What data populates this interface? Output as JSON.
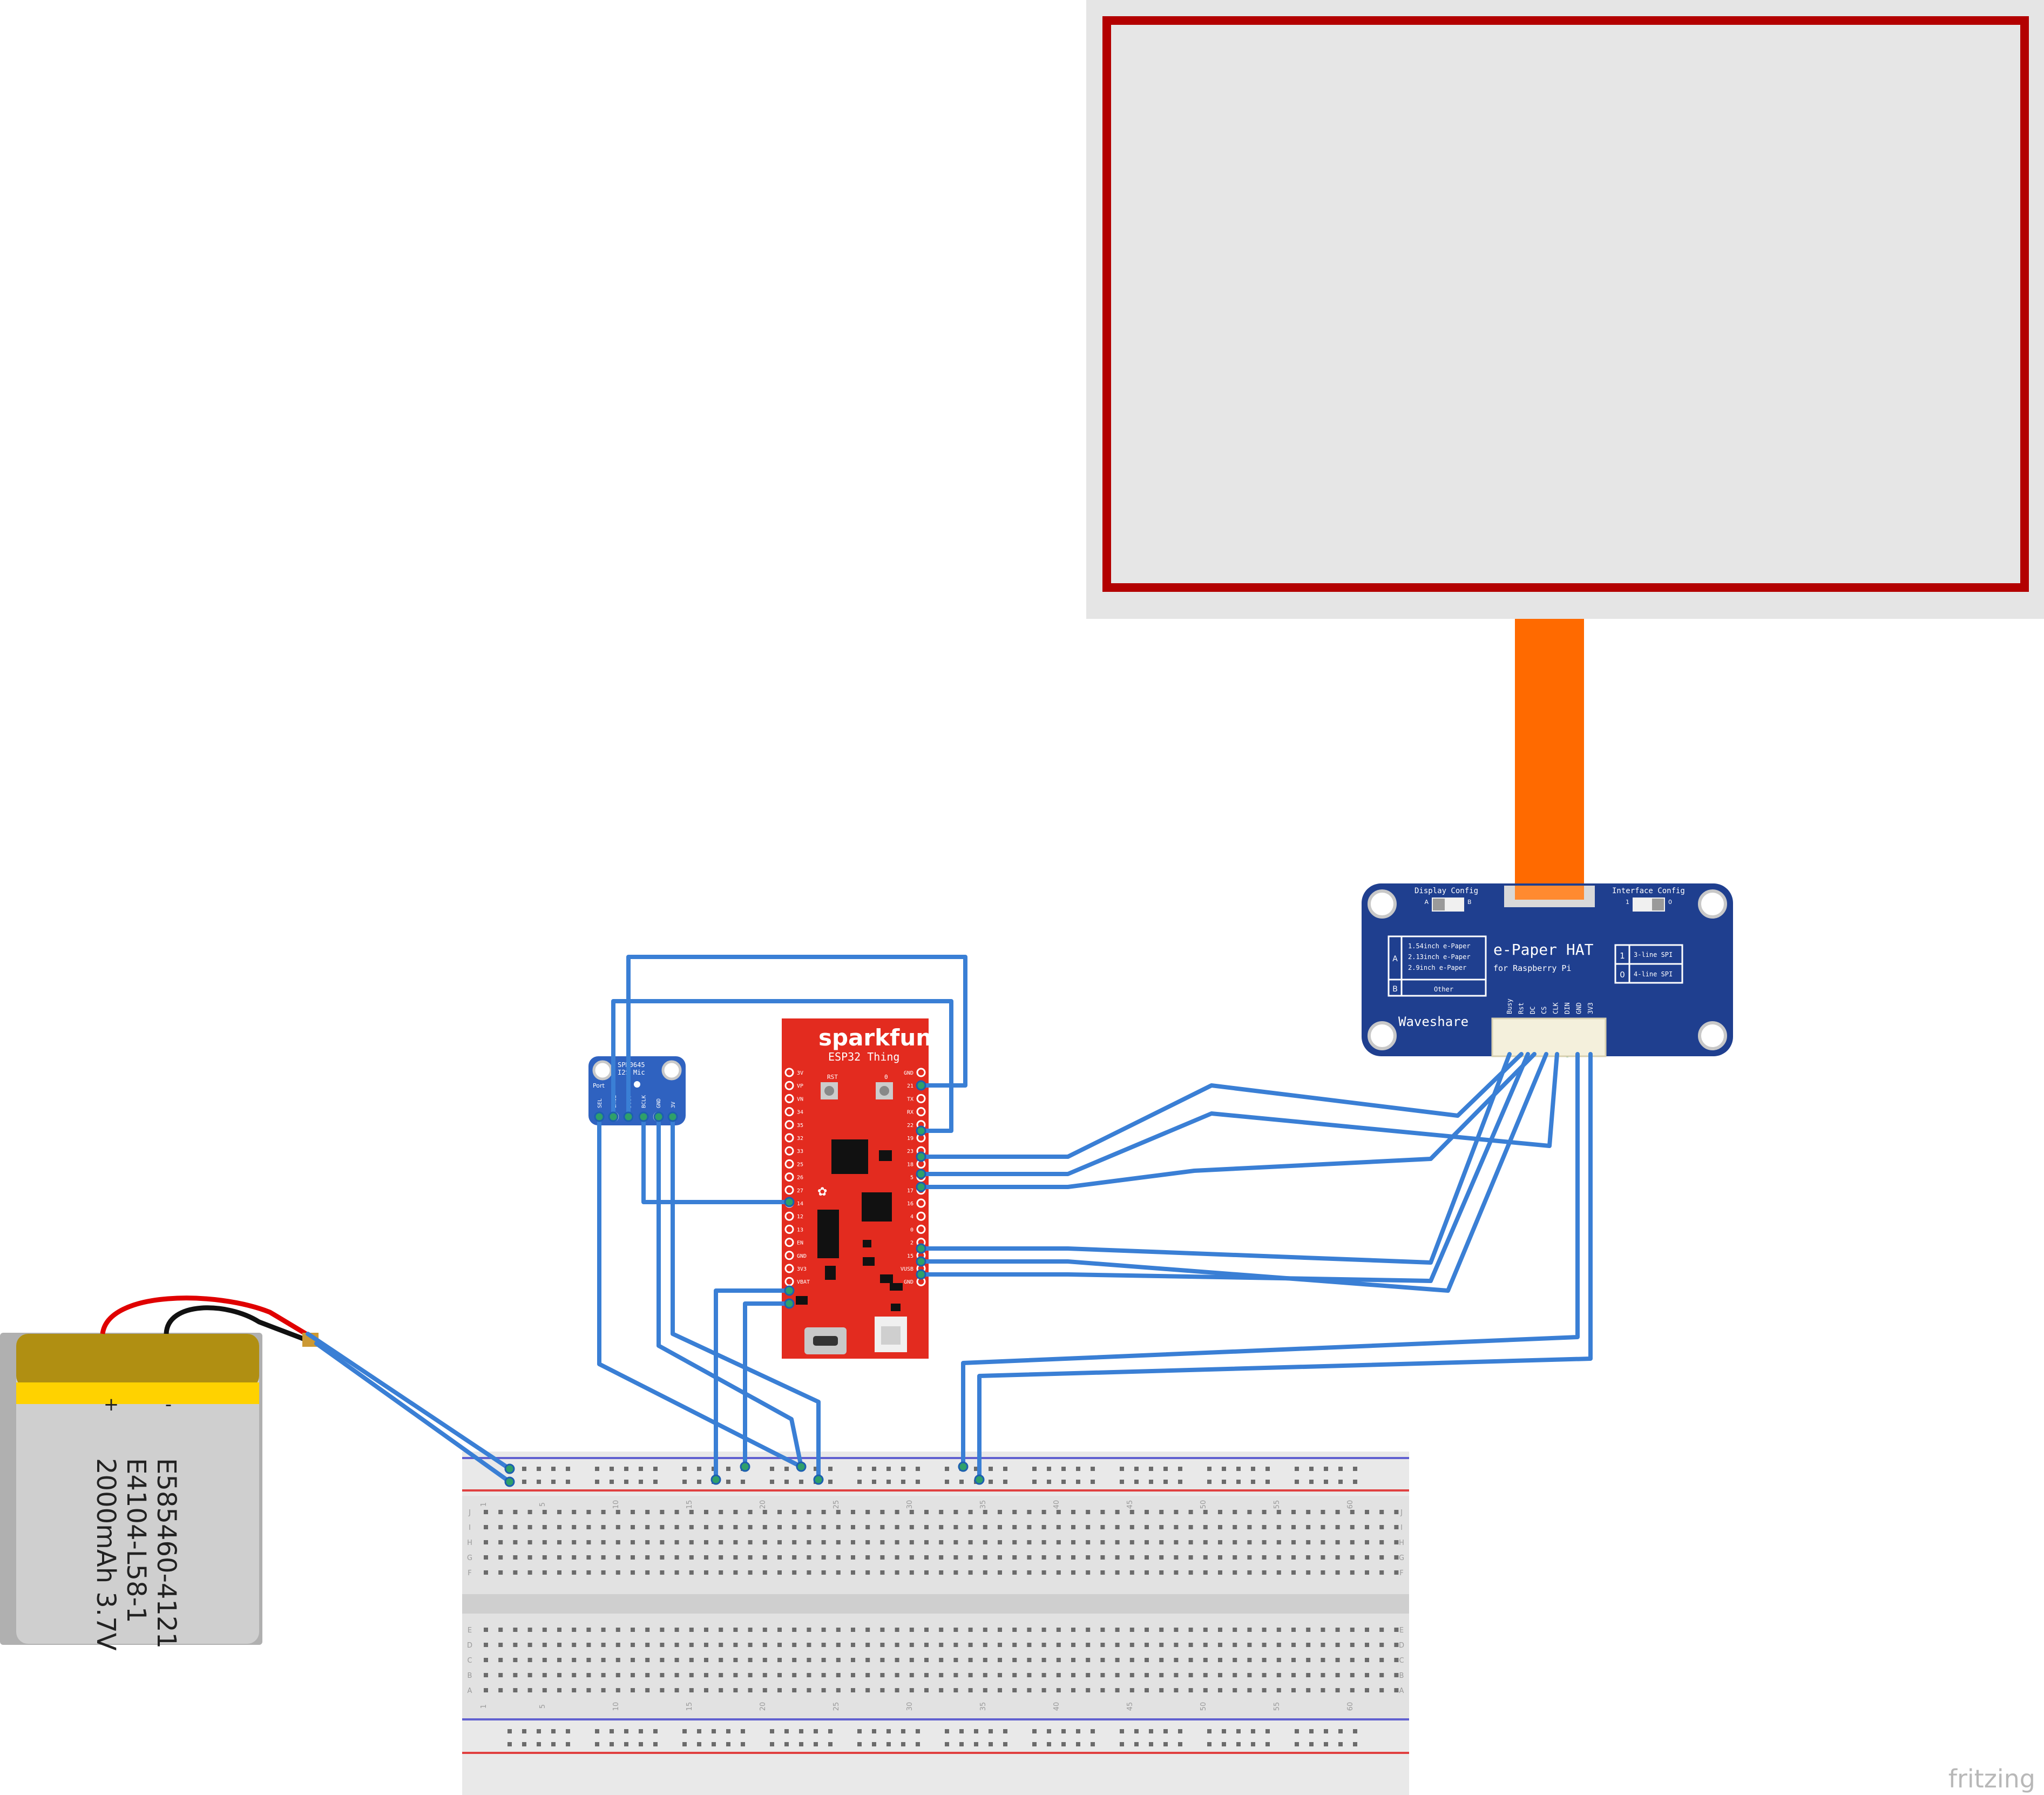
{
  "battery": {
    "plus": "+",
    "minus": "-",
    "label_line1": "E585460-4121",
    "label_line2": "E4104-L58-1",
    "label_line3": "2000mAh 3.7V"
  },
  "esp32": {
    "brand": "sparkfun",
    "model": "ESP32 Thing",
    "left_pins": [
      "3V",
      "VP",
      "VN",
      "34",
      "35",
      "32",
      "33",
      "25",
      "26",
      "27",
      "14",
      "12",
      "13",
      "EN",
      "GND",
      "3V3",
      "VBAT"
    ],
    "right_pins": [
      "GND",
      "21",
      "TX",
      "RX",
      "22",
      "19",
      "23",
      "18",
      "5",
      "17",
      "16",
      "4",
      "0",
      "2",
      "15",
      "VUSB",
      "GND"
    ],
    "btn_left": "RST",
    "btn_right": "0"
  },
  "mic": {
    "title_line1": "SPH0645",
    "title_line2": "I2S Mic",
    "port": "Port",
    "pins": [
      "SEL",
      "LRCL",
      "DOUT",
      "BCLK",
      "GND",
      "3V"
    ]
  },
  "epaper_hat": {
    "title": "e-Paper HAT",
    "subtitle": "for Raspberry Pi",
    "brand": "Waveshare",
    "display_config": "Display Config",
    "interface_config": "Interface Config",
    "switch_a": "A",
    "switch_b": "B",
    "switch_1": "1",
    "switch_0": "0",
    "table_a": "A",
    "table_b": "B",
    "table_rows": [
      "1.54inch e-Paper",
      "2.13inch e-Paper",
      "2.9inch e-Paper"
    ],
    "table_other": "Other",
    "spi_1": "1",
    "spi_0": "0",
    "spi_3line": "3-line SPI",
    "spi_4line": "4-line SPI",
    "pins": [
      "Busy",
      "Rst",
      "DC",
      "CS",
      "CLK",
      "DIN",
      "GND",
      "3V3"
    ]
  },
  "breadboard": {
    "col_numbers": [
      "1",
      "5",
      "10",
      "15",
      "20",
      "25",
      "30",
      "35",
      "40",
      "45",
      "50",
      "55",
      "60"
    ],
    "row_letters_top": [
      "J",
      "I",
      "H",
      "G",
      "F"
    ],
    "row_letters_bottom": [
      "E",
      "D",
      "C",
      "B",
      "A"
    ]
  },
  "footer": {
    "watermark": "fritzing"
  },
  "colors": {
    "wire": "#3a7fd5",
    "wire_dark": "#1d5fb0",
    "esp_red": "#e32b1f",
    "hat_blue": "#1f3f8f",
    "ribbon": "#ff6a00",
    "display_frame": "#b30000",
    "display_fill": "#e5e5e5",
    "battery_gold": "#b08f12",
    "battery_yellow": "#ffd200",
    "battery_body": "#cfcfcf"
  }
}
